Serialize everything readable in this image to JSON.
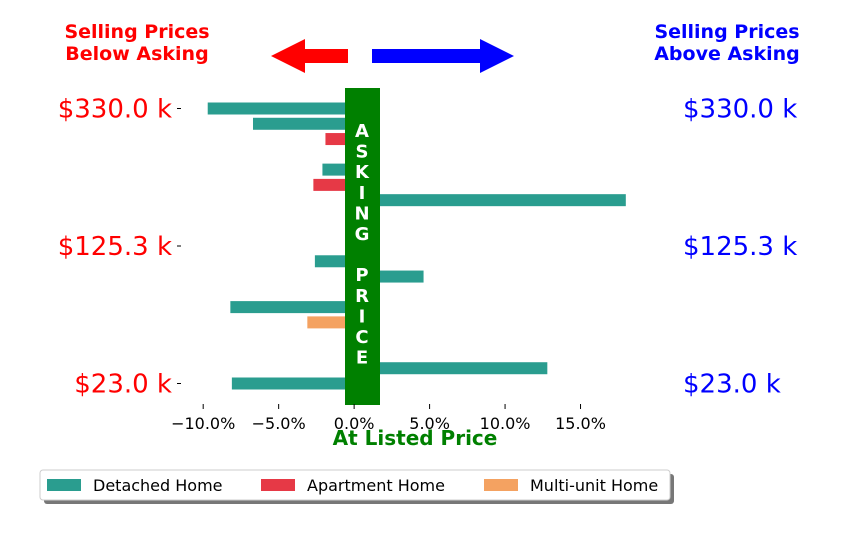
{
  "chart_data": {
    "type": "bar",
    "orientation": "horizontal",
    "xlabel": "At Listed Price",
    "xlim": [
      -12,
      20
    ],
    "x_ticks": [
      -10,
      -5,
      0,
      5,
      10,
      15
    ],
    "x_tick_labels": [
      "−10.0%",
      "−5.0%",
      "0.0%",
      "5.0%",
      "10.0%",
      "15.0%"
    ],
    "y_tick_labels_left": [
      "$330.0 k",
      "$125.3 k",
      "$23.0 k"
    ],
    "y_tick_labels_right": [
      "$330.0 k",
      "$125.3 k",
      "$23.0 k"
    ],
    "left_header": [
      "Selling Prices",
      "Below Asking"
    ],
    "right_header": [
      "Selling Prices",
      "Above Asking"
    ],
    "asking_band_text": [
      "A",
      "S",
      "K",
      "I",
      "N",
      "G",
      "",
      "P",
      "R",
      "I",
      "C",
      "E"
    ],
    "legend_position": "bottom-left",
    "series": [
      {
        "name": "Detached Home",
        "color": "#2a9d8f"
      },
      {
        "name": "Apartment Home",
        "color": "#e63946"
      },
      {
        "name": "Multi-unit Home",
        "color": "#f4a261"
      }
    ],
    "bars": [
      {
        "price": "$330.0 k",
        "series": 0,
        "value": -9.7
      },
      {
        "price": "",
        "series": 0,
        "value": -6.7
      },
      {
        "price": "",
        "series": 1,
        "value": -1.9
      },
      {
        "price": "",
        "series": 0,
        "value": 1.1
      },
      {
        "price": "",
        "series": 0,
        "value": -2.1
      },
      {
        "price": "",
        "series": 1,
        "value": -2.7
      },
      {
        "price": "",
        "series": 0,
        "value": 18.0
      },
      {
        "price": "",
        "series": 1,
        "value": 1.1
      },
      {
        "price": "",
        "series": 0,
        "value": 1.0
      },
      {
        "price": "$125.3 k",
        "series": 0,
        "value": 1.0
      },
      {
        "price": "",
        "series": 0,
        "value": -2.6
      },
      {
        "price": "",
        "series": 0,
        "value": 4.6
      },
      {
        "price": "",
        "series": 0,
        "value": 1.1
      },
      {
        "price": "",
        "series": 0,
        "value": -8.2
      },
      {
        "price": "",
        "series": 2,
        "value": -3.1
      },
      {
        "price": "",
        "series": 0,
        "value": 1.1
      },
      {
        "price": "",
        "series": 0,
        "value": 1.1
      },
      {
        "price": "",
        "series": 0,
        "value": 12.8
      },
      {
        "price": "$23.0 k",
        "series": 0,
        "value": -8.1
      }
    ],
    "colors": {
      "below": "#ff0000",
      "above": "#0000ff",
      "asking": "#008000"
    }
  }
}
